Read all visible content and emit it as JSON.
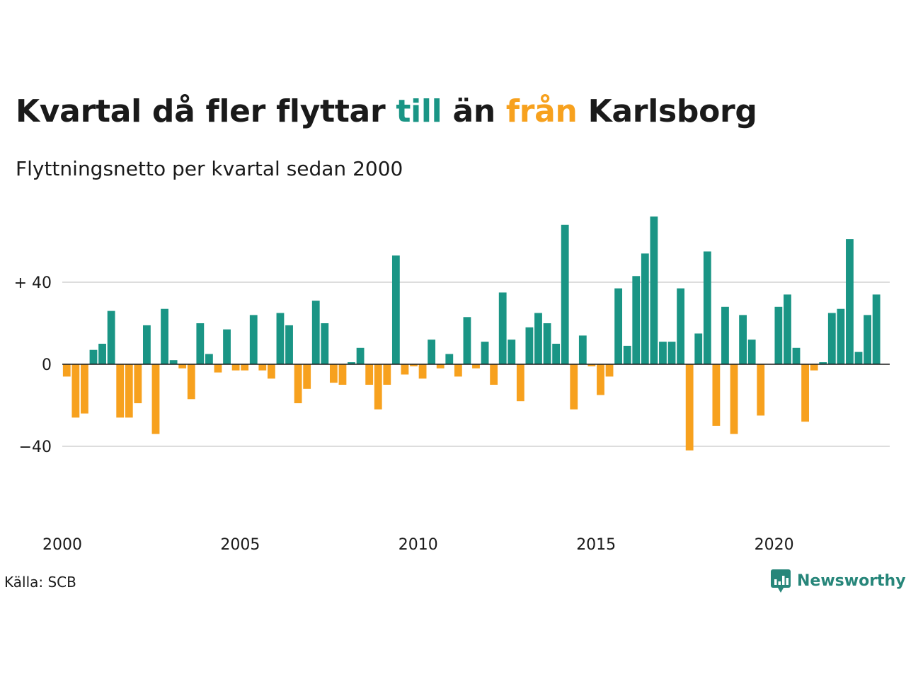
{
  "title": {
    "part1": "Kvartal då fler flyttar ",
    "word_to": "till",
    "part2": " än ",
    "word_from": "från",
    "part3": " Karlsborg"
  },
  "subtitle": "Flyttningsnetto per kvartal sedan 2000",
  "source": "Källa: SCB",
  "brand": "Newsworthy",
  "colors": {
    "positive": "#1a9585",
    "negative": "#f7a11e",
    "grid": "#dddddd",
    "axis": "#1a1a1a",
    "brand": "#27867a"
  },
  "chart_data": {
    "type": "bar",
    "xlabel": "",
    "ylabel": "",
    "grid": true,
    "ylim": [
      -75,
      75
    ],
    "xlim": [
      2000,
      2023.25
    ],
    "y_ticks": [
      {
        "value": 40,
        "label": "+ 40"
      },
      {
        "value": 0,
        "label": "0"
      },
      {
        "value": -40,
        "label": "−40"
      }
    ],
    "x_ticks": [
      {
        "value": 2000,
        "label": "2000"
      },
      {
        "value": 2005,
        "label": "2005"
      },
      {
        "value": 2010,
        "label": "2010"
      },
      {
        "value": 2015,
        "label": "2015"
      },
      {
        "value": 2020,
        "label": "2020"
      }
    ],
    "start": "2000 Q1",
    "values": [
      -6,
      -26,
      -24,
      7,
      10,
      26,
      -26,
      -26,
      -19,
      19,
      -34,
      27,
      2,
      -2,
      -17,
      20,
      5,
      -4,
      17,
      -3,
      -3,
      24,
      -3,
      -7,
      25,
      19,
      -19,
      -12,
      31,
      20,
      -9,
      -10,
      1,
      8,
      -10,
      -22,
      -10,
      53,
      -5,
      -1,
      -7,
      12,
      -2,
      5,
      -6,
      23,
      -2,
      11,
      -10,
      35,
      12,
      -18,
      18,
      25,
      20,
      10,
      68,
      -22,
      14,
      -1,
      -15,
      -6,
      37,
      9,
      43,
      54,
      72,
      11,
      11,
      37,
      -42,
      15,
      55,
      -30,
      28,
      -34,
      24,
      12,
      -25,
      0,
      28,
      34,
      8,
      -28,
      -3,
      1,
      25,
      27,
      61,
      6,
      24,
      34
    ]
  }
}
